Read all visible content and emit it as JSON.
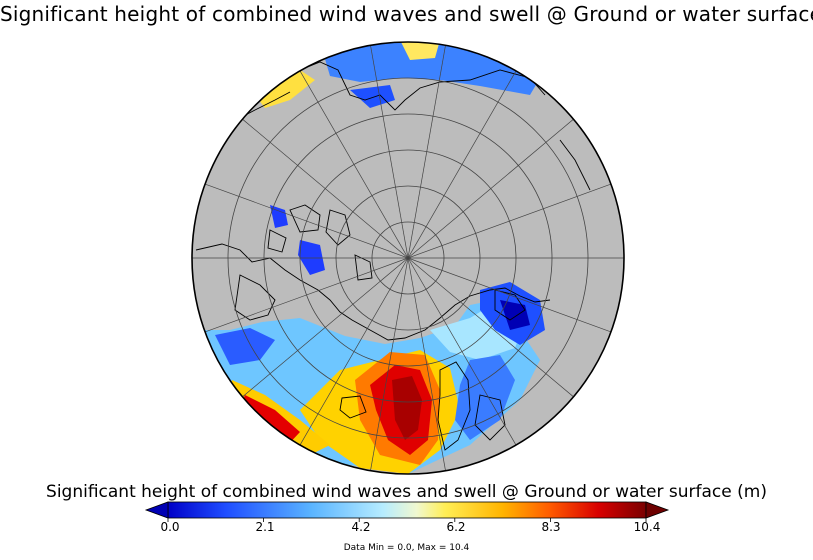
{
  "map": {
    "title": "Significant height of combined wind waves and swell @ Ground or water surface",
    "projection": "north polar stereographic",
    "land_color": "#bcbcbc",
    "coastline_color": "#000000"
  },
  "colorbar": {
    "title": "Significant height of combined wind waves and swell @ Ground or water surface (m)",
    "min": 0.0,
    "max": 10.4,
    "tick_labels": [
      "0.0",
      "2.1",
      "4.2",
      "6.2",
      "8.3",
      "10.4"
    ],
    "extend": "both",
    "colors": [
      "#0000c8",
      "#2f6bff",
      "#87d3ff",
      "#c8f4ff",
      "#fff06a",
      "#ffc800",
      "#ff7a00",
      "#e60000",
      "#9a0000",
      "#6e0000"
    ]
  },
  "data_range_text": "Data Min = 0.0, Max = 10.4"
}
